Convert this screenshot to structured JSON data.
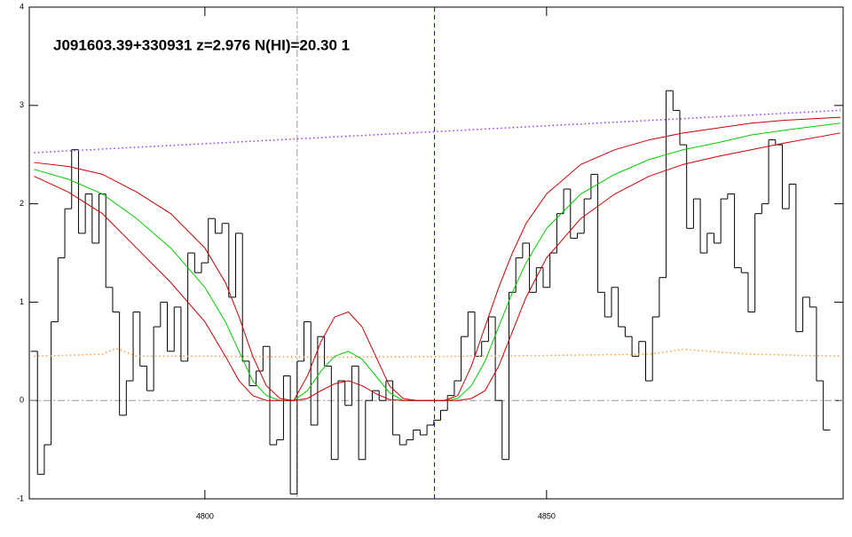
{
  "chart_data": {
    "type": "line",
    "title": "J091603.39+330931 z=2.976 N(HI)=20.30 1",
    "xlim": [
      4774.3,
      4893.4
    ],
    "ylim": [
      -1,
      4
    ],
    "xticks": [
      4800,
      4850
    ],
    "yticks": [
      -1,
      0,
      1,
      2,
      3,
      4
    ],
    "hlines": [
      {
        "value": 0,
        "color": "#999999",
        "style": "dashdot"
      }
    ],
    "vlines": [
      {
        "value": 4813.5,
        "color": "#999999",
        "style": "dashdot"
      },
      {
        "value": 4833.6,
        "color": "#0000cc",
        "style": "dashed"
      }
    ],
    "series": [
      {
        "color": "#000000",
        "style": "steps",
        "binwidth": 1,
        "x": [
          4775,
          4776,
          4777,
          4778,
          4779,
          4780,
          4781,
          4782,
          4783,
          4784,
          4785,
          4786,
          4787,
          4788,
          4789,
          4790,
          4791,
          4792,
          4793,
          4794,
          4795,
          4796,
          4797,
          4798,
          4799,
          4800,
          4801,
          4802,
          4803,
          4804,
          4805,
          4806,
          4807,
          4808,
          4809,
          4810,
          4811,
          4812,
          4813,
          4814,
          4815,
          4816,
          4817,
          4818,
          4819,
          4820,
          4821,
          4822,
          4823,
          4824,
          4825,
          4826,
          4827,
          4828,
          4829,
          4830,
          4831,
          4832,
          4833,
          4834,
          4835,
          4836,
          4837,
          4838,
          4839,
          4840,
          4841,
          4842,
          4843,
          4844,
          4845,
          4846,
          4847,
          4848,
          4849,
          4850,
          4851,
          4852,
          4853,
          4854,
          4855,
          4856,
          4857,
          4858,
          4859,
          4860,
          4861,
          4862,
          4863,
          4864,
          4865,
          4866,
          4867,
          4868,
          4869,
          4870,
          4871,
          4872,
          4873,
          4874,
          4875,
          4876,
          4877,
          4878,
          4879,
          4880,
          4881,
          4882,
          4883,
          4884,
          4885,
          4886,
          4887,
          4888,
          4889,
          4890,
          4891
        ],
        "values": [
          0.5,
          -0.75,
          -0.45,
          0.8,
          1.45,
          1.95,
          2.55,
          1.7,
          2.1,
          1.6,
          2.1,
          1.15,
          0.9,
          -0.15,
          0.2,
          0.9,
          0.35,
          0.1,
          0.75,
          1.0,
          0.5,
          0.95,
          0.4,
          1.5,
          1.3,
          1.4,
          1.85,
          1.7,
          1.8,
          1.05,
          1.7,
          0.4,
          0.15,
          0.3,
          0.55,
          -0.45,
          -0.4,
          0.25,
          -0.95,
          0.4,
          0.8,
          -0.25,
          0.65,
          0.35,
          -0.6,
          0.2,
          -0.05,
          0.35,
          -0.6,
          0.0,
          0.1,
          0.0,
          0.2,
          -0.35,
          -0.45,
          -0.4,
          -0.3,
          -0.35,
          -0.25,
          -0.2,
          -0.1,
          0.05,
          0.2,
          0.65,
          0.9,
          0.45,
          0.6,
          0.85,
          0.0,
          -0.6,
          1.1,
          1.45,
          1.6,
          1.1,
          1.35,
          1.15,
          1.5,
          1.9,
          2.15,
          1.65,
          1.7,
          2.05,
          2.3,
          1.1,
          0.85,
          1.15,
          0.75,
          0.65,
          0.45,
          0.6,
          0.2,
          0.85,
          1.25,
          3.15,
          2.95,
          2.6,
          1.75,
          2.05,
          1.5,
          1.7,
          1.6,
          2.05,
          2.1,
          1.35,
          1.3,
          0.9,
          1.9,
          2.0,
          2.65,
          2.6,
          1.95,
          2.2,
          0.7,
          1.05,
          0.95,
          0.2,
          -0.3
        ]
      },
      {
        "color": "#9933ff",
        "style": "dotted",
        "x": [
          4775,
          4893
        ],
        "values": [
          2.52,
          2.95
        ]
      },
      {
        "color": "#ff9933",
        "style": "dotted",
        "x": [
          4775,
          4785,
          4787,
          4790,
          4800,
          4820,
          4840,
          4865,
          4870,
          4880,
          4893
        ],
        "values": [
          0.45,
          0.47,
          0.53,
          0.45,
          0.45,
          0.44,
          0.45,
          0.47,
          0.52,
          0.47,
          0.45
        ]
      },
      {
        "color": "#00cc00",
        "style": "solid",
        "x": [
          4775,
          4780,
          4785,
          4790,
          4795,
          4800,
          4803,
          4805,
          4807,
          4809,
          4811,
          4813,
          4815,
          4817,
          4819,
          4821,
          4823,
          4825,
          4827,
          4829,
          4831,
          4833,
          4835,
          4837,
          4839,
          4841,
          4843,
          4845,
          4847,
          4850,
          4855,
          4860,
          4865,
          4870,
          4875,
          4880,
          4885,
          4893
        ],
        "values": [
          2.35,
          2.25,
          2.1,
          1.85,
          1.55,
          1.15,
          0.8,
          0.5,
          0.2,
          0.05,
          0,
          0,
          0.1,
          0.3,
          0.45,
          0.5,
          0.42,
          0.25,
          0.08,
          0,
          0,
          0,
          0,
          0.02,
          0.15,
          0.4,
          0.75,
          1.1,
          1.4,
          1.75,
          2.1,
          2.3,
          2.45,
          2.55,
          2.62,
          2.7,
          2.75,
          2.82
        ]
      },
      {
        "color": "#cc0000",
        "style": "solid",
        "x": [
          4775,
          4780,
          4785,
          4790,
          4795,
          4800,
          4803,
          4805,
          4807,
          4809,
          4811,
          4813,
          4815,
          4817,
          4819,
          4821,
          4823,
          4825,
          4827,
          4829,
          4831,
          4833,
          4835,
          4837,
          4839,
          4841,
          4843,
          4845,
          4847,
          4850,
          4855,
          4860,
          4865,
          4870,
          4875,
          4880,
          4885,
          4893
        ],
        "values": [
          2.42,
          2.38,
          2.3,
          2.12,
          1.9,
          1.55,
          1.2,
          0.85,
          0.45,
          0.15,
          0.02,
          0,
          0.25,
          0.6,
          0.85,
          0.9,
          0.75,
          0.45,
          0.15,
          0.02,
          0,
          0,
          0,
          0.05,
          0.35,
          0.75,
          1.15,
          1.5,
          1.8,
          2.1,
          2.4,
          2.55,
          2.65,
          2.72,
          2.77,
          2.82,
          2.85,
          2.88
        ]
      },
      {
        "color": "#cc0000",
        "style": "solid",
        "x": [
          4775,
          4780,
          4785,
          4790,
          4795,
          4800,
          4803,
          4805,
          4807,
          4809,
          4811,
          4813,
          4815,
          4817,
          4819,
          4821,
          4823,
          4825,
          4827,
          4829,
          4831,
          4833,
          4835,
          4837,
          4839,
          4841,
          4843,
          4845,
          4847,
          4850,
          4855,
          4860,
          4865,
          4870,
          4875,
          4880,
          4885,
          4893
        ],
        "values": [
          2.28,
          2.12,
          1.9,
          1.55,
          1.2,
          0.8,
          0.45,
          0.2,
          0.05,
          0,
          0,
          0,
          0.02,
          0.1,
          0.17,
          0.2,
          0.15,
          0.07,
          0.01,
          0,
          0,
          0,
          0,
          0,
          0.02,
          0.1,
          0.35,
          0.7,
          1.05,
          1.45,
          1.85,
          2.1,
          2.28,
          2.4,
          2.48,
          2.55,
          2.62,
          2.72
        ]
      }
    ]
  }
}
